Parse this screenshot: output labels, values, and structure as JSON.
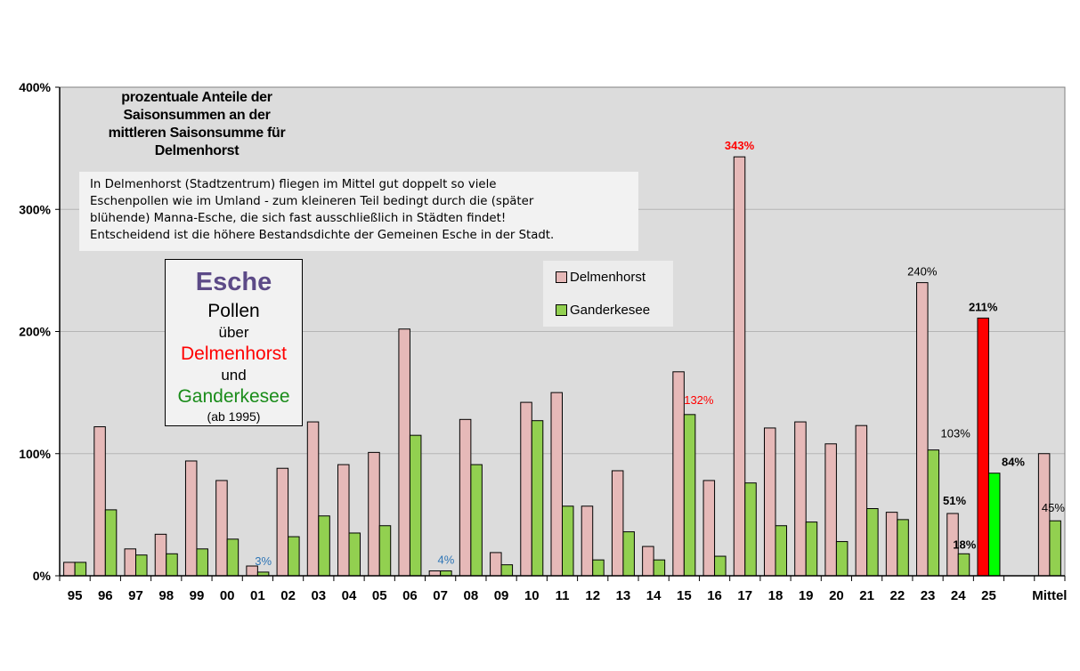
{
  "chart_data": {
    "type": "bar",
    "categories": [
      "95",
      "96",
      "97",
      "98",
      "99",
      "00",
      "01",
      "02",
      "03",
      "04",
      "05",
      "06",
      "07",
      "08",
      "09",
      "10",
      "11",
      "12",
      "13",
      "14",
      "15",
      "16",
      "17",
      "18",
      "19",
      "20",
      "21",
      "22",
      "23",
      "24",
      "25",
      "",
      "Mittel"
    ],
    "series": [
      {
        "name": "Delmenhorst",
        "values": [
          11,
          122,
          22,
          34,
          94,
          78,
          8,
          88,
          126,
          91,
          101,
          202,
          4,
          128,
          19,
          142,
          150,
          57,
          86,
          24,
          167,
          78,
          343,
          121,
          126,
          108,
          123,
          52,
          240,
          51,
          211,
          null,
          100
        ]
      },
      {
        "name": "Ganderkesee",
        "values": [
          11,
          54,
          17,
          18,
          22,
          30,
          3,
          32,
          49,
          35,
          41,
          115,
          4,
          91,
          9,
          127,
          57,
          13,
          36,
          13,
          132,
          16,
          76,
          41,
          44,
          28,
          55,
          46,
          103,
          18,
          84,
          null,
          45
        ]
      }
    ],
    "ylim": [
      0,
      400
    ],
    "yticks": [
      0,
      100,
      200,
      300,
      400
    ],
    "ytick_labels": [
      "0%",
      "100%",
      "200%",
      "300%",
      "400%"
    ],
    "grid": true,
    "legend_position": "center-top",
    "colors": {
      "delmenhorst": "#e6b9b8",
      "ganderkesee": "#92d050",
      "delmenhorst_highlight": "#ff0000",
      "ganderkesee_highlight": "#00ff00",
      "plot_background": "#dcdcdc"
    },
    "data_labels": [
      {
        "category": "01",
        "series": "Ganderkesee",
        "text": "3%",
        "color": "#2e75b6",
        "bold": false
      },
      {
        "category": "07",
        "series": "Ganderkesee",
        "text": "4%",
        "color": "#2e75b6",
        "bold": false
      },
      {
        "category": "15",
        "series": "Ganderkesee",
        "text": "132%",
        "color": "#ff0000",
        "bold": false
      },
      {
        "category": "17",
        "series": "Delmenhorst",
        "text": "343%",
        "color": "#ff0000",
        "bold": true
      },
      {
        "category": "23",
        "series": "Delmenhorst",
        "text": "240%",
        "color": "#000000",
        "bold": false
      },
      {
        "category": "23",
        "series": "Ganderkesee",
        "text": "103%",
        "color": "#000000",
        "bold": false
      },
      {
        "category": "24",
        "series": "Delmenhorst",
        "text": "51%",
        "color": "#000000",
        "bold": true
      },
      {
        "category": "24",
        "series": "Ganderkesee",
        "text": "18%",
        "color": "#000000",
        "bold": true
      },
      {
        "category": "25",
        "series": "Delmenhorst",
        "text": "211%",
        "color": "#000000",
        "bold": true
      },
      {
        "category": "25",
        "series": "Ganderkesee",
        "text": "84%",
        "color": "#000000",
        "bold": true
      },
      {
        "category": "Mittel",
        "series": "Ganderkesee",
        "text": "45%",
        "color": "#000000",
        "bold": false
      }
    ]
  },
  "title_lines": [
    "prozentuale Anteile der",
    "Saisonsummen an der",
    "mittleren Saisonsumme für",
    "Delmenhorst"
  ],
  "note_lines": [
    "In Delmenhorst (Stadtzentrum) fliegen im Mittel gut doppelt so viele",
    "Eschenpollen wie im Umland - zum kleineren Teil bedingt durch die (später",
    "blühende) Manna-Esche, die sich fast ausschließlich in Städten findet!",
    "Entscheidend ist die höhere Bestandsdichte der Gemeinen Esche in der Stadt."
  ],
  "legend": {
    "delmenhorst": "Delmenhorst",
    "ganderkesee": "Ganderkesee"
  },
  "info_box": {
    "title": "Esche",
    "line1": "Pollen",
    "line2": "über",
    "city1": "Delmenhorst",
    "line3": "und",
    "city2": "Ganderkesee",
    "since": "(ab 1995)"
  }
}
